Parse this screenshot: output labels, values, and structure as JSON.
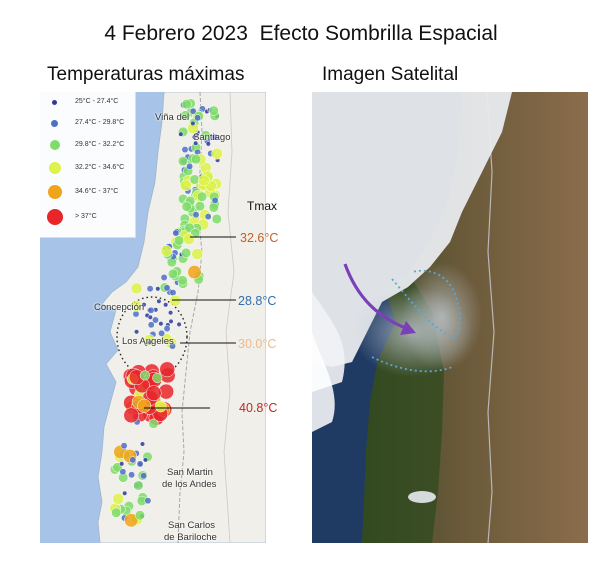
{
  "title": "4 Febrero 2023  Efecto Sombrilla Espacial",
  "left_panel": {
    "subtitle": "Temperaturas máximas",
    "legend": [
      {
        "label": "25°C - 27.4°C",
        "color": "#2e3a9a"
      },
      {
        "label": "27.4°C - 29.8°C",
        "color": "#4f6fc7"
      },
      {
        "label": "29.8°C - 32.2°C",
        "color": "#7fdc6a"
      },
      {
        "label": "32.2°C - 34.6°C",
        "color": "#ddf24a"
      },
      {
        "label": "34.6°C - 37°C",
        "color": "#f0a419"
      },
      {
        "label": "> 37°C",
        "color": "#e8262a"
      }
    ],
    "cities": {
      "vina": "Viña del",
      "santiago": "Santiago",
      "concepcion": "Concepción",
      "los_angeles": "Los Angeles",
      "san_martin": "San Martin",
      "de_los_andes": "de los Andes",
      "san_carlos": "San Carlos",
      "de_bariloche": "de Bariloche"
    },
    "tmax_header": "Tmax",
    "tmax_callouts": [
      {
        "value": "32.6°C",
        "color": "#c0602a"
      },
      {
        "value": "28.8°C",
        "color": "#2f6fb0"
      },
      {
        "value": "30.0°C",
        "color": "#f2b98c"
      },
      {
        "value": "40.8°C",
        "color": "#c4262a"
      }
    ]
  },
  "right_panel": {
    "subtitle": "Imagen Satelital"
  },
  "colors": {
    "ocean": "#a8c3e8",
    "land_map": "#f1efe9",
    "arrow": "#7b3fb8",
    "smoke_outline": "#5aa7d6"
  }
}
